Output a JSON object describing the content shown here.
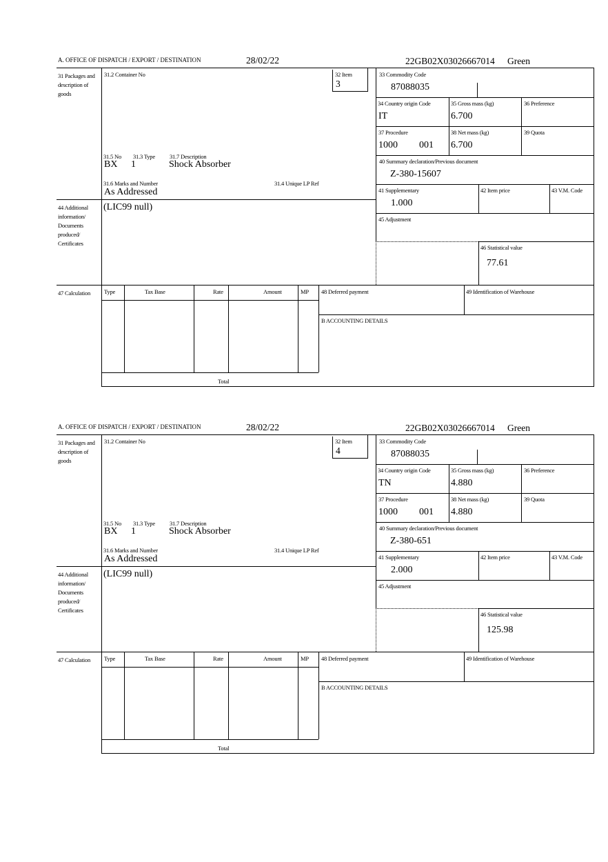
{
  "labels": {
    "office": "A.  OFFICE OF DISPATCH / EXPORT / DESTINATION",
    "box31": "31 Packages and description of goods",
    "box31_2": "31.2 Container No",
    "box32": "32 Item",
    "box31_5": "31.5 No",
    "box31_3": "31.3 Type",
    "box31_7": "31.7 Description",
    "box31_6": "31.6 Marks and Number",
    "box31_4": "31.4 Unique LP Ref",
    "box44": "44 Additional information/ Documents produced/ Certificates",
    "box33": "33 Commodity Code",
    "box34": "34 Country origin Code",
    "box35": "35 Gross mass (kg)",
    "box36": "36 Preference",
    "box37": "37 Procedure",
    "box38": "38 Net mass (kg)",
    "box39": "39 Quota",
    "box40": "40 Summary declaration/Previous document",
    "box41": "41 Supplementary",
    "box42": "42 Item price",
    "box43": "43 V.M. Code",
    "box45": "45 Adjustment",
    "box46": "46 Statistical value",
    "box47": "47 Calculation",
    "calc_headers": [
      "Type",
      "Tax Base",
      "Rate",
      "Amount",
      "MP"
    ],
    "total": "Total",
    "box48": "48 Deferred payment",
    "box49": "49 Identification of Warehouse",
    "boxB": "B ACCOUNTING DETAILS"
  },
  "forms": [
    {
      "date": "28/02/22",
      "reference": "22GB02X03026667014",
      "status": "Green",
      "item": "3",
      "package_kind": "BX",
      "package_count": "1",
      "description": "Shock Absorber",
      "marks": "As Addressed",
      "additional_info": "(LIC99 null)",
      "commodity_code": "87088035",
      "country_origin": "IT",
      "gross_mass": "6.700",
      "procedure": "1000",
      "procedure_additional": "001",
      "net_mass": "6.700",
      "previous_document": "Z-380-15607",
      "supplementary": "1.000",
      "statistical_value": "77.61"
    },
    {
      "date": "28/02/22",
      "reference": "22GB02X03026667014",
      "status": "Green",
      "item": "4",
      "package_kind": "BX",
      "package_count": "1",
      "description": "Shock Absorber",
      "marks": "As Addressed",
      "additional_info": "(LIC99 null)",
      "commodity_code": "87088035",
      "country_origin": "TN",
      "gross_mass": "4.880",
      "procedure": "1000",
      "procedure_additional": "001",
      "net_mass": "4.880",
      "previous_document": "Z-380-651",
      "supplementary": "2.000",
      "statistical_value": "125.98"
    }
  ]
}
